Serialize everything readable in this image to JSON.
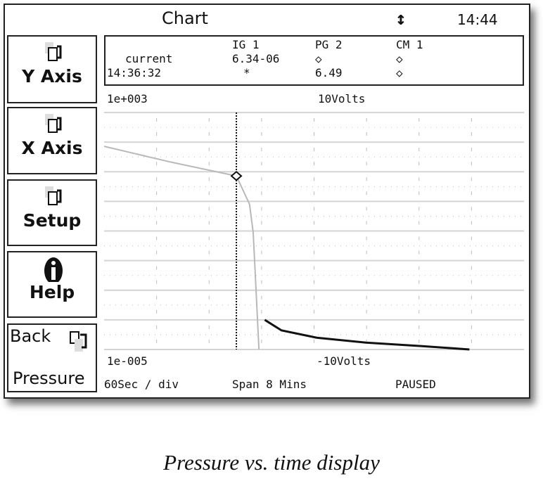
{
  "header": {
    "title": "Chart",
    "scroll_icon": "up-down-arrow-icon",
    "clock": "14:44"
  },
  "sidebar": {
    "buttons": [
      {
        "label": "Y Axis",
        "icon": "document-menu-icon"
      },
      {
        "label": "X Axis",
        "icon": "document-menu-icon"
      },
      {
        "label": "Setup",
        "icon": "document-menu-icon"
      },
      {
        "label": "Help",
        "icon": "info-icon"
      }
    ],
    "back": {
      "label_top": "Back",
      "label_bottom": "Pressure",
      "icon": "back-document-icon"
    }
  },
  "readout": {
    "columns": [
      "IG 1",
      "PG 2",
      "CM 1"
    ],
    "rows": [
      {
        "label": "current",
        "values": [
          "6.34-06",
          "◇",
          "◇"
        ]
      },
      {
        "label": "14:36:32",
        "values": [
          "*",
          "6.49",
          "◇"
        ]
      }
    ]
  },
  "axis_labels": {
    "y_top": "1e+003",
    "volts_top": "10Volts",
    "y_bottom": "1e-005",
    "volts_bottom": "-10Volts",
    "time_per_div": "60Sec / div",
    "span": "Span 8 Mins",
    "status": "PAUSED"
  },
  "chart_data": {
    "type": "line",
    "x_unit": "minutes",
    "xlim": [
      0,
      8
    ],
    "ylim": [
      1e-05,
      1000
    ],
    "y_scale": "log",
    "grid": true,
    "cursor_x": 2.52,
    "series": [
      {
        "color": "#b8b8b8",
        "points": [
          [
            0,
            72
          ],
          [
            1.23,
            22
          ],
          [
            2.52,
            7.2
          ],
          [
            2.77,
            0.81
          ],
          [
            2.84,
            0.091
          ],
          [
            2.9,
            0.00066
          ],
          [
            2.95,
            1e-05
          ]
        ]
      },
      {
        "color": "#111111",
        "points": [
          [
            3.06,
            0.0001
          ],
          [
            3.38,
            4.4e-05
          ],
          [
            4.05,
            2.5e-05
          ],
          [
            4.99,
            1.7e-05
          ],
          [
            6.06,
            1.3e-05
          ],
          [
            6.96,
            1e-05
          ]
        ]
      }
    ]
  },
  "caption": "Pressure vs. time display"
}
